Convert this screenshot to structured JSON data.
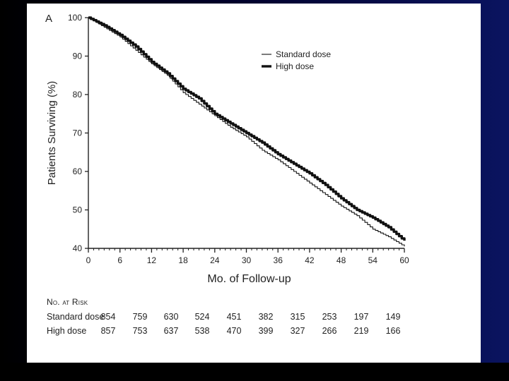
{
  "panel_label": "A",
  "chart_data": {
    "type": "line",
    "xlabel": "Mo. of Follow-up",
    "ylabel": "Patients Surviving (%)",
    "xlim": [
      0,
      60
    ],
    "ylim": [
      40,
      100
    ],
    "xticks": [
      0,
      6,
      12,
      18,
      24,
      30,
      36,
      42,
      48,
      54,
      60
    ],
    "yticks": [
      40,
      50,
      60,
      70,
      80,
      90,
      100
    ],
    "grid": false,
    "legend_position": "top-right",
    "series": [
      {
        "name": "Standard dose",
        "x": [
          0,
          3,
          6,
          9,
          12,
          15,
          18,
          21,
          24,
          27,
          30,
          33,
          36,
          39,
          42,
          45,
          48,
          51,
          54,
          57,
          60
        ],
        "y": [
          100,
          97.5,
          95.0,
          91.5,
          88.0,
          85.0,
          80.5,
          77.5,
          74.5,
          71.5,
          69.0,
          65.5,
          63.0,
          60.0,
          57.0,
          54.0,
          51.0,
          48.5,
          45.0,
          43.0,
          40.5
        ]
      },
      {
        "name": "High dose",
        "x": [
          0,
          3,
          6,
          9,
          12,
          15,
          18,
          21,
          24,
          27,
          30,
          33,
          36,
          39,
          42,
          45,
          48,
          51,
          54,
          57,
          60
        ],
        "y": [
          100,
          98.0,
          95.5,
          92.5,
          88.5,
          85.5,
          81.5,
          79.0,
          75.0,
          72.5,
          70.0,
          67.5,
          64.5,
          62.0,
          59.5,
          56.5,
          53.0,
          50.0,
          48.0,
          45.5,
          42.0
        ]
      }
    ]
  },
  "risk_table": {
    "header": "No. at Risk",
    "rows": [
      {
        "label": "Standard dose",
        "values": [
          854,
          759,
          630,
          524,
          451,
          382,
          315,
          253,
          197,
          149
        ]
      },
      {
        "label": "High dose",
        "values": [
          857,
          753,
          637,
          538,
          470,
          399,
          327,
          266,
          219,
          166
        ]
      }
    ]
  }
}
